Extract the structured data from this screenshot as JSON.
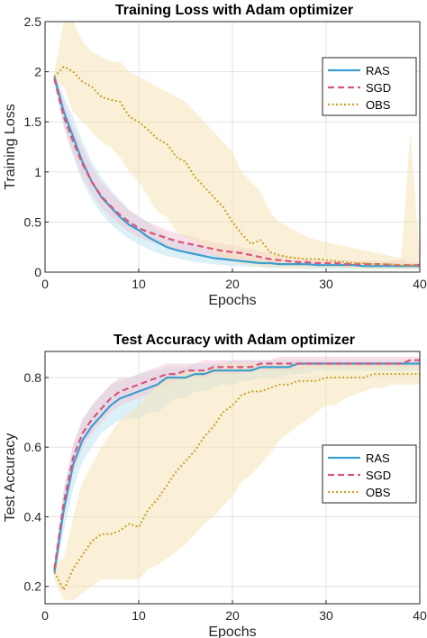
{
  "chart_data": [
    {
      "type": "line",
      "title": "Training Loss with Adam optimizer",
      "xlabel": "Epochs",
      "ylabel": "Training Loss",
      "xlim": [
        0,
        40
      ],
      "ylim": [
        0,
        2.5
      ],
      "xticks": [
        0,
        10,
        20,
        30,
        40
      ],
      "yticks": [
        0,
        0.5,
        1,
        1.5,
        2,
        2.5
      ],
      "grid": true,
      "legend": "top-right",
      "x": [
        1,
        2,
        3,
        4,
        5,
        6,
        7,
        8,
        9,
        10,
        11,
        12,
        13,
        14,
        15,
        16,
        17,
        18,
        19,
        20,
        21,
        22,
        23,
        24,
        25,
        26,
        27,
        28,
        29,
        30,
        31,
        32,
        33,
        34,
        35,
        36,
        37,
        38,
        39,
        40
      ],
      "series": [
        {
          "name": "RAS",
          "style": "solid",
          "color": "#3b9fd0",
          "band_color": "#bfe3f3",
          "values": [
            1.95,
            1.6,
            1.35,
            1.1,
            0.9,
            0.75,
            0.65,
            0.55,
            0.47,
            0.42,
            0.35,
            0.3,
            0.25,
            0.22,
            0.2,
            0.18,
            0.16,
            0.14,
            0.13,
            0.12,
            0.11,
            0.1,
            0.09,
            0.09,
            0.08,
            0.08,
            0.08,
            0.08,
            0.07,
            0.07,
            0.07,
            0.07,
            0.07,
            0.06,
            0.06,
            0.06,
            0.06,
            0.06,
            0.06,
            0.06
          ],
          "lower": [
            1.9,
            1.45,
            1.15,
            0.9,
            0.72,
            0.58,
            0.48,
            0.4,
            0.33,
            0.28,
            0.23,
            0.19,
            0.16,
            0.14,
            0.12,
            0.1,
            0.09,
            0.08,
            0.07,
            0.06,
            0.06,
            0.05,
            0.05,
            0.04,
            0.04,
            0.04,
            0.04,
            0.03,
            0.03,
            0.03,
            0.03,
            0.03,
            0.03,
            0.03,
            0.03,
            0.03,
            0.03,
            0.03,
            0.03,
            0.03
          ],
          "upper": [
            2.0,
            1.75,
            1.55,
            1.3,
            1.1,
            0.95,
            0.82,
            0.72,
            0.62,
            0.56,
            0.5,
            0.42,
            0.36,
            0.3,
            0.28,
            0.26,
            0.23,
            0.2,
            0.19,
            0.17,
            0.16,
            0.15,
            0.14,
            0.13,
            0.12,
            0.12,
            0.12,
            0.11,
            0.11,
            0.1,
            0.1,
            0.1,
            0.1,
            0.09,
            0.09,
            0.09,
            0.09,
            0.09,
            0.09,
            0.09
          ]
        },
        {
          "name": "SGD",
          "style": "dashed",
          "color": "#d8557e",
          "band_color": "#f3c9d5",
          "values": [
            1.93,
            1.55,
            1.3,
            1.08,
            0.9,
            0.76,
            0.66,
            0.57,
            0.5,
            0.44,
            0.4,
            0.37,
            0.34,
            0.31,
            0.29,
            0.27,
            0.25,
            0.23,
            0.21,
            0.2,
            0.19,
            0.17,
            0.15,
            0.13,
            0.12,
            0.11,
            0.1,
            0.1,
            0.09,
            0.09,
            0.09,
            0.08,
            0.08,
            0.08,
            0.08,
            0.08,
            0.07,
            0.07,
            0.07,
            0.07
          ],
          "lower": [
            1.88,
            1.45,
            1.18,
            0.95,
            0.78,
            0.64,
            0.55,
            0.47,
            0.4,
            0.35,
            0.31,
            0.28,
            0.25,
            0.23,
            0.21,
            0.19,
            0.17,
            0.16,
            0.14,
            0.13,
            0.12,
            0.11,
            0.1,
            0.09,
            0.08,
            0.07,
            0.07,
            0.06,
            0.06,
            0.06,
            0.06,
            0.05,
            0.05,
            0.05,
            0.05,
            0.05,
            0.05,
            0.05,
            0.05,
            0.05
          ],
          "upper": [
            1.98,
            1.7,
            1.45,
            1.24,
            1.05,
            0.9,
            0.8,
            0.7,
            0.62,
            0.55,
            0.5,
            0.46,
            0.42,
            0.39,
            0.37,
            0.35,
            0.32,
            0.3,
            0.28,
            0.27,
            0.25,
            0.23,
            0.21,
            0.19,
            0.17,
            0.15,
            0.14,
            0.13,
            0.13,
            0.12,
            0.12,
            0.12,
            0.11,
            0.11,
            0.11,
            0.11,
            0.11,
            0.13,
            0.1,
            0.1
          ]
        },
        {
          "name": "OBS",
          "style": "dotted",
          "color": "#c9a227",
          "band_color": "#f6e3b8",
          "values": [
            1.95,
            2.05,
            2.0,
            1.9,
            1.85,
            1.75,
            1.72,
            1.7,
            1.55,
            1.5,
            1.42,
            1.33,
            1.28,
            1.15,
            1.1,
            0.95,
            0.85,
            0.75,
            0.65,
            0.5,
            0.38,
            0.28,
            0.32,
            0.2,
            0.17,
            0.15,
            0.14,
            0.13,
            0.13,
            0.12,
            0.11,
            0.1,
            0.09,
            0.09,
            0.08,
            0.08,
            0.08,
            0.07,
            0.07,
            0.07
          ],
          "lower": [
            1.9,
            1.85,
            1.6,
            1.5,
            1.4,
            1.3,
            1.25,
            1.15,
            1.0,
            0.9,
            0.75,
            0.6,
            0.55,
            0.4,
            0.35,
            0.3,
            0.25,
            0.2,
            0.15,
            0.1,
            0.08,
            0.06,
            0.05,
            0.05,
            0.05,
            0.04,
            0.04,
            0.04,
            0.04,
            0.04,
            0.04,
            0.04,
            0.03,
            0.03,
            0.03,
            0.03,
            0.03,
            0.03,
            0.03,
            0.03
          ],
          "upper": [
            2.0,
            2.5,
            2.5,
            2.3,
            2.2,
            2.15,
            2.1,
            2.1,
            2.0,
            1.95,
            1.9,
            1.85,
            1.8,
            1.75,
            1.7,
            1.6,
            1.5,
            1.4,
            1.3,
            1.2,
            1.0,
            0.9,
            0.8,
            0.6,
            0.5,
            0.45,
            0.4,
            0.35,
            0.32,
            0.3,
            0.28,
            0.26,
            0.24,
            0.22,
            0.2,
            0.18,
            0.16,
            0.14,
            1.4,
            0.15
          ]
        }
      ]
    },
    {
      "type": "line",
      "title": "Test Accuracy with Adam optimizer",
      "xlabel": "Epochs",
      "ylabel": "Test Accuracy",
      "xlim": [
        0,
        40
      ],
      "ylim": [
        0.15,
        0.875
      ],
      "xticks": [
        0,
        10,
        20,
        30,
        40
      ],
      "yticks": [
        0.2,
        0.4,
        0.6,
        0.8
      ],
      "grid": true,
      "legend": "center-right",
      "x": [
        1,
        2,
        3,
        4,
        5,
        6,
        7,
        8,
        9,
        10,
        11,
        12,
        13,
        14,
        15,
        16,
        17,
        18,
        19,
        20,
        21,
        22,
        23,
        24,
        25,
        26,
        27,
        28,
        29,
        30,
        31,
        32,
        33,
        34,
        35,
        36,
        37,
        38,
        39,
        40
      ],
      "series": [
        {
          "name": "RAS",
          "style": "solid",
          "color": "#3b9fd0",
          "band_color": "#bfe3f3",
          "values": [
            0.24,
            0.42,
            0.55,
            0.62,
            0.66,
            0.69,
            0.72,
            0.74,
            0.75,
            0.76,
            0.77,
            0.78,
            0.8,
            0.8,
            0.8,
            0.81,
            0.81,
            0.82,
            0.82,
            0.82,
            0.82,
            0.82,
            0.83,
            0.83,
            0.83,
            0.83,
            0.84,
            0.84,
            0.84,
            0.84,
            0.84,
            0.84,
            0.84,
            0.84,
            0.84,
            0.84,
            0.84,
            0.84,
            0.84,
            0.84
          ],
          "lower": [
            0.22,
            0.36,
            0.48,
            0.56,
            0.6,
            0.64,
            0.66,
            0.68,
            0.68,
            0.68,
            0.7,
            0.7,
            0.72,
            0.74,
            0.74,
            0.76,
            0.76,
            0.77,
            0.78,
            0.78,
            0.79,
            0.79,
            0.8,
            0.8,
            0.8,
            0.81,
            0.81,
            0.81,
            0.82,
            0.82,
            0.82,
            0.82,
            0.82,
            0.82,
            0.82,
            0.82,
            0.82,
            0.82,
            0.82,
            0.82
          ],
          "upper": [
            0.27,
            0.48,
            0.6,
            0.68,
            0.72,
            0.75,
            0.78,
            0.79,
            0.8,
            0.81,
            0.82,
            0.82,
            0.83,
            0.83,
            0.83,
            0.84,
            0.84,
            0.84,
            0.84,
            0.85,
            0.85,
            0.85,
            0.85,
            0.85,
            0.85,
            0.85,
            0.85,
            0.85,
            0.85,
            0.85,
            0.85,
            0.85,
            0.85,
            0.85,
            0.85,
            0.85,
            0.85,
            0.85,
            0.85,
            0.85
          ]
        },
        {
          "name": "SGD",
          "style": "dashed",
          "color": "#d8557e",
          "band_color": "#f3c9d5",
          "values": [
            0.25,
            0.44,
            0.57,
            0.64,
            0.68,
            0.71,
            0.74,
            0.76,
            0.77,
            0.78,
            0.79,
            0.8,
            0.81,
            0.81,
            0.82,
            0.82,
            0.82,
            0.83,
            0.83,
            0.83,
            0.83,
            0.83,
            0.84,
            0.84,
            0.84,
            0.84,
            0.84,
            0.84,
            0.84,
            0.84,
            0.84,
            0.84,
            0.84,
            0.84,
            0.84,
            0.84,
            0.84,
            0.84,
            0.85,
            0.85
          ],
          "lower": [
            0.23,
            0.4,
            0.52,
            0.6,
            0.64,
            0.67,
            0.7,
            0.72,
            0.73,
            0.74,
            0.75,
            0.77,
            0.78,
            0.79,
            0.8,
            0.8,
            0.8,
            0.81,
            0.81,
            0.81,
            0.81,
            0.82,
            0.82,
            0.82,
            0.82,
            0.82,
            0.82,
            0.83,
            0.83,
            0.83,
            0.83,
            0.83,
            0.83,
            0.83,
            0.83,
            0.83,
            0.83,
            0.83,
            0.83,
            0.83
          ],
          "upper": [
            0.27,
            0.48,
            0.61,
            0.68,
            0.72,
            0.75,
            0.78,
            0.8,
            0.8,
            0.81,
            0.82,
            0.83,
            0.84,
            0.84,
            0.84,
            0.84,
            0.85,
            0.85,
            0.85,
            0.85,
            0.85,
            0.85,
            0.85,
            0.85,
            0.86,
            0.86,
            0.86,
            0.86,
            0.86,
            0.86,
            0.86,
            0.86,
            0.86,
            0.86,
            0.86,
            0.86,
            0.86,
            0.86,
            0.86,
            0.86
          ]
        },
        {
          "name": "OBS",
          "style": "dotted",
          "color": "#c9a227",
          "band_color": "#f6e3b8",
          "values": [
            0.24,
            0.19,
            0.25,
            0.29,
            0.33,
            0.35,
            0.35,
            0.36,
            0.38,
            0.37,
            0.42,
            0.45,
            0.49,
            0.53,
            0.56,
            0.59,
            0.63,
            0.66,
            0.7,
            0.72,
            0.75,
            0.76,
            0.76,
            0.77,
            0.78,
            0.78,
            0.79,
            0.79,
            0.79,
            0.8,
            0.8,
            0.8,
            0.8,
            0.8,
            0.81,
            0.81,
            0.81,
            0.81,
            0.81,
            0.81
          ],
          "lower": [
            0.22,
            0.16,
            0.16,
            0.18,
            0.2,
            0.22,
            0.22,
            0.22,
            0.22,
            0.22,
            0.25,
            0.26,
            0.28,
            0.3,
            0.32,
            0.35,
            0.38,
            0.4,
            0.43,
            0.46,
            0.5,
            0.52,
            0.55,
            0.58,
            0.62,
            0.64,
            0.66,
            0.68,
            0.7,
            0.72,
            0.72,
            0.74,
            0.75,
            0.76,
            0.77,
            0.77,
            0.78,
            0.78,
            0.78,
            0.78
          ],
          "upper": [
            0.27,
            0.28,
            0.4,
            0.5,
            0.55,
            0.6,
            0.64,
            0.68,
            0.7,
            0.72,
            0.75,
            0.78,
            0.8,
            0.8,
            0.82,
            0.82,
            0.82,
            0.83,
            0.84,
            0.84,
            0.84,
            0.84,
            0.84,
            0.84,
            0.84,
            0.84,
            0.84,
            0.84,
            0.84,
            0.84,
            0.84,
            0.84,
            0.84,
            0.84,
            0.84,
            0.84,
            0.84,
            0.84,
            0.84,
            0.84
          ]
        }
      ]
    }
  ]
}
